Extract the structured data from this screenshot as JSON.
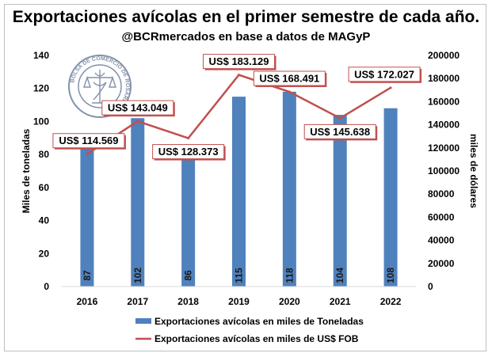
{
  "chart_data": {
    "type": "bar",
    "title": "Exportaciones avícolas en el primer semestre de cada año.",
    "subtitle": "@BCRmercados en base a datos de MAGyP",
    "categories": [
      "2016",
      "2017",
      "2018",
      "2019",
      "2020",
      "2021",
      "2022"
    ],
    "series": [
      {
        "name": "Exportaciones avícolas en miles de Toneladas",
        "type": "bar",
        "axis": "left",
        "color": "#4f81bd",
        "values": [
          87,
          102,
          86,
          115,
          118,
          104,
          108
        ],
        "labels": [
          "87",
          "102",
          "86",
          "115",
          "118",
          "104",
          "108"
        ]
      },
      {
        "name": "Exportaciones avícolas en miles de US$ FOB",
        "type": "line",
        "axis": "right",
        "color": "#c0504d",
        "values": [
          114569,
          143049,
          128373,
          183129,
          168491,
          145638,
          172027
        ],
        "labels": [
          "US$ 114.569",
          "US$ 143.049",
          "US$ 128.373",
          "US$ 183.129",
          "US$ 168.491",
          "US$ 145.638",
          "US$ 172.027"
        ]
      }
    ],
    "ylabel": "Miles de toneladas",
    "ylim": [
      0,
      140
    ],
    "yticks": [
      "0",
      "20",
      "40",
      "60",
      "80",
      "100",
      "120",
      "140"
    ],
    "y2label": "miles de dólares",
    "y2lim": [
      0,
      200000
    ],
    "y2ticks": [
      "0",
      "20000",
      "40000",
      "60000",
      "80000",
      "100000",
      "120000",
      "140000",
      "160000",
      "180000",
      "200000"
    ],
    "legend_position": "bottom",
    "grid": false
  },
  "logo": {
    "text_ring": "BOLSA DE COMERCIO DE ROSARIO"
  }
}
